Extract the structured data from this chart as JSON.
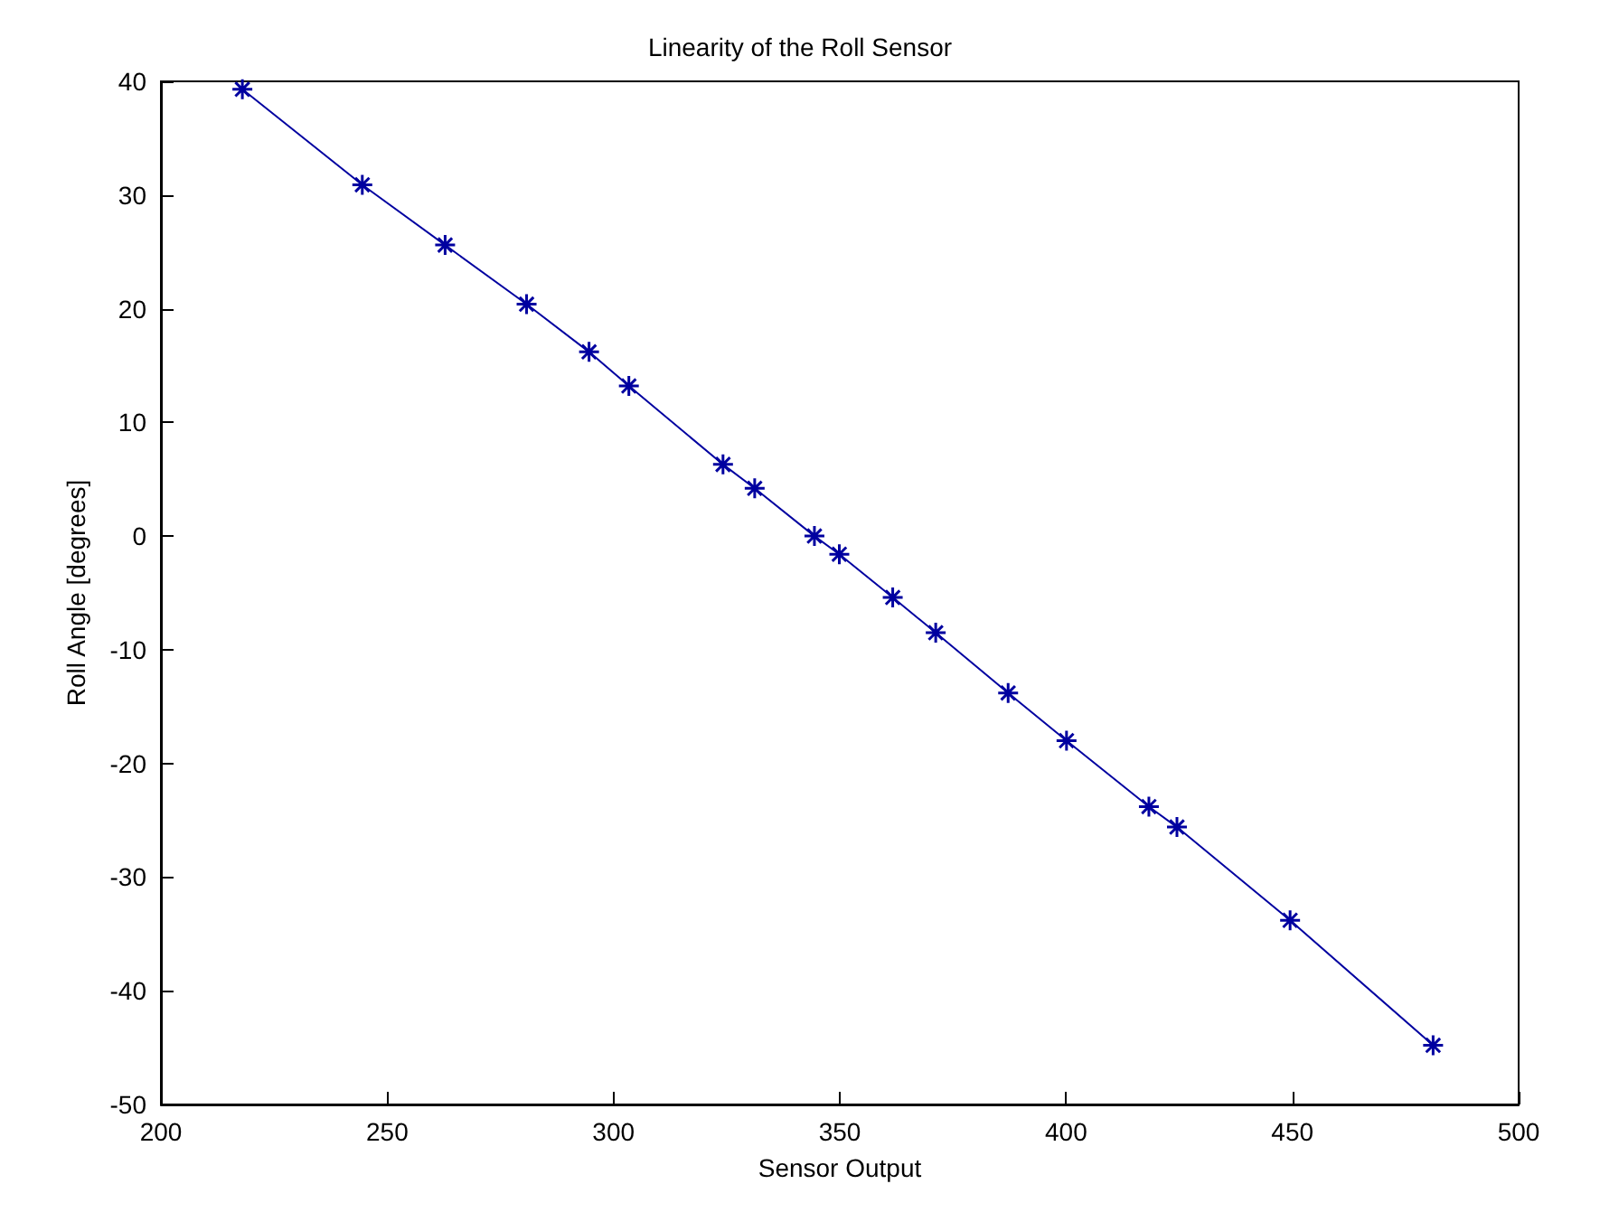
{
  "chart_data": {
    "type": "line",
    "title": "Linearity of the Roll Sensor",
    "xlabel": "Sensor Output",
    "ylabel": "Roll Angle [degrees]",
    "x": [
      218.0,
      244.5,
      262.8,
      280.8,
      294.6,
      303.4,
      324.2,
      331.2,
      344.4,
      349.9,
      361.7,
      371.2,
      387.2,
      400.1,
      418.3,
      424.5,
      449.5,
      481.1
    ],
    "series": [
      {
        "color": "#0000a0",
        "values": [
          39.3,
          30.9,
          25.6,
          20.4,
          16.2,
          13.2,
          6.3,
          4.2,
          0,
          -1.6,
          -5.4,
          -8.5,
          -13.8,
          -18.0,
          -23.8,
          -25.6,
          -33.8,
          -44.8
        ]
      }
    ],
    "xlim": [
      200,
      500
    ],
    "xticks": [
      200,
      250,
      300,
      350,
      400,
      450,
      500
    ],
    "ylim": [
      -50,
      40
    ],
    "yticks": [
      -50,
      -40,
      -30,
      -20,
      -10,
      0,
      10,
      20,
      30,
      40
    ],
    "marker": "cross",
    "line_style": "solid",
    "grid": false
  }
}
